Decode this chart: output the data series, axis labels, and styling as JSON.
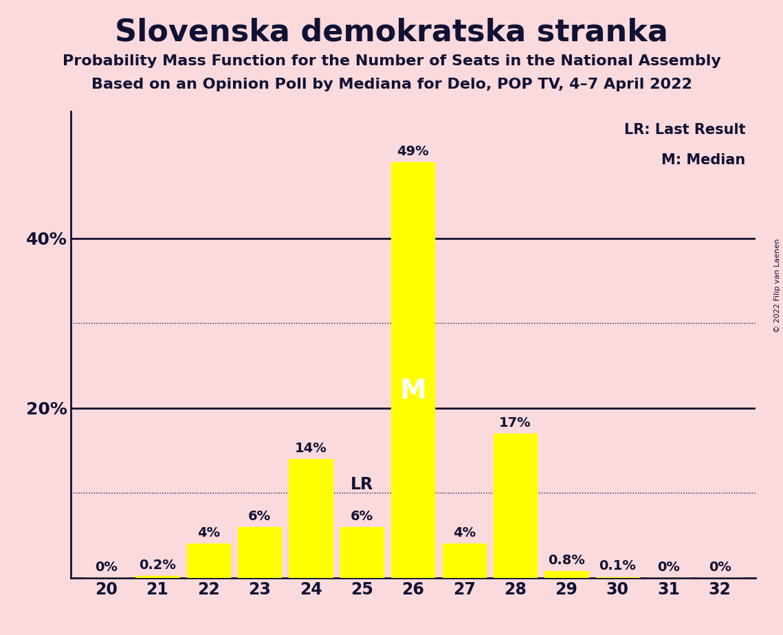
{
  "title": "Slovenska demokratska stranka",
  "subtitle1": "Probability Mass Function for the Number of Seats in the National Assembly",
  "subtitle2": "Based on an Opinion Poll by Mediana for Delo, POP TV, 4–7 April 2022",
  "copyright": "© 2022 Filip van Laenen",
  "categories": [
    20,
    21,
    22,
    23,
    24,
    25,
    26,
    27,
    28,
    29,
    30,
    31,
    32
  ],
  "values": [
    0.0,
    0.2,
    4.0,
    6.0,
    14.0,
    6.0,
    49.0,
    4.0,
    17.0,
    0.8,
    0.1,
    0.0,
    0.0
  ],
  "labels": [
    "0%",
    "0.2%",
    "4%",
    "6%",
    "14%",
    "6%",
    "49%",
    "4%",
    "17%",
    "0.8%",
    "0.1%",
    "0%",
    "0%"
  ],
  "bar_color": "#FFFF00",
  "background_color": "#FADADD",
  "text_color": "#111133",
  "ylim": [
    0,
    55
  ],
  "yticks_labeled": [
    20.0,
    40.0
  ],
  "ytick_labels": [
    "20%",
    "40%"
  ],
  "solid_gridlines": [
    20.0,
    40.0
  ],
  "dotted_gridlines": [
    10.0,
    30.0
  ],
  "median_seat": 26,
  "last_result_seat": 25,
  "legend_lr": "LR: Last Result",
  "legend_m": "M: Median"
}
